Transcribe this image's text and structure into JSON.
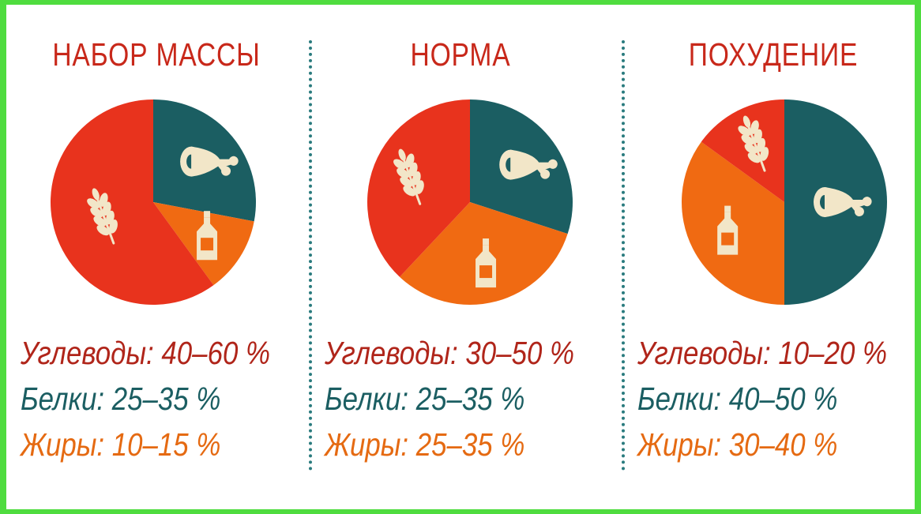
{
  "colors": {
    "carbs": "#e8331d",
    "protein": "#1b5e62",
    "fat": "#f06a12",
    "title": "#c8281a",
    "icon": "#f2e6c8"
  },
  "chart_data": [
    {
      "type": "pie",
      "title": "НАБОР МАССЫ",
      "slices": [
        {
          "category": "carbs",
          "icon": "wheat-icon",
          "value": 60
        },
        {
          "category": "protein",
          "icon": "ham-icon",
          "value": 28
        },
        {
          "category": "fat",
          "icon": "oil-bottle-icon",
          "value": 12
        }
      ],
      "legend": [
        {
          "category": "carbs",
          "text": "Углеводы: 40–60 %"
        },
        {
          "category": "protein",
          "text": "Белки: 25–35 %"
        },
        {
          "category": "fat",
          "text": "Жиры: 10–15 %"
        }
      ]
    },
    {
      "type": "pie",
      "title": "НОРМА",
      "slices": [
        {
          "category": "carbs",
          "icon": "wheat-icon",
          "value": 38
        },
        {
          "category": "protein",
          "icon": "ham-icon",
          "value": 30
        },
        {
          "category": "fat",
          "icon": "oil-bottle-icon",
          "value": 32
        }
      ],
      "legend": [
        {
          "category": "carbs",
          "text": "Углеводы: 30–50 %"
        },
        {
          "category": "protein",
          "text": "Белки: 25–35 %"
        },
        {
          "category": "fat",
          "text": "Жиры: 25–35 %"
        }
      ]
    },
    {
      "type": "pie",
      "title": "ПОХУДЕНИЕ",
      "slices": [
        {
          "category": "carbs",
          "icon": "wheat-icon",
          "value": 15
        },
        {
          "category": "protein",
          "icon": "ham-icon",
          "value": 50
        },
        {
          "category": "fat",
          "icon": "oil-bottle-icon",
          "value": 35
        }
      ],
      "legend": [
        {
          "category": "carbs",
          "text": "Углеводы: 10–20 %"
        },
        {
          "category": "protein",
          "text": "Белки: 40–50 %"
        },
        {
          "category": "fat",
          "text": "Жиры: 30–40 %"
        }
      ]
    }
  ]
}
